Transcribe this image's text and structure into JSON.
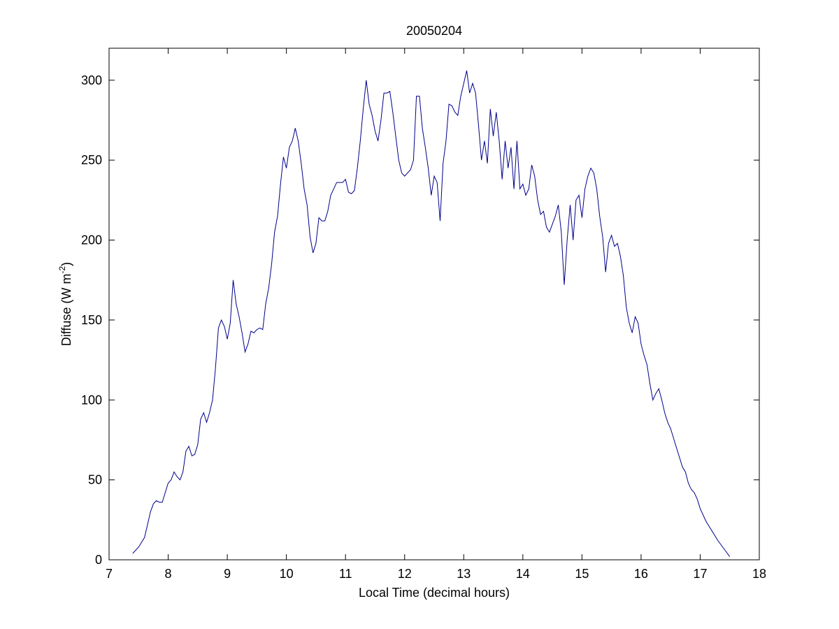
{
  "chart_data": {
    "type": "line",
    "title": "20050204",
    "xlabel": "Local Time (decimal hours)",
    "ylabel_main": "Diffuse (W m",
    "ylabel_sup": "-2",
    "ylabel_close": ")",
    "xlim": [
      7,
      18
    ],
    "ylim": [
      0,
      320
    ],
    "xticks": [
      7,
      8,
      9,
      10,
      11,
      12,
      13,
      14,
      15,
      16,
      17,
      18
    ],
    "xtick_labels": [
      "7",
      "8",
      "9",
      "10",
      "11",
      "12",
      "13",
      "14",
      "15",
      "16",
      "17",
      "18"
    ],
    "yticks": [
      0,
      50,
      100,
      150,
      200,
      250,
      300
    ],
    "ytick_labels": [
      "0",
      "50",
      "100",
      "150",
      "200",
      "250",
      "300"
    ],
    "grid": false,
    "line_color": "#00008b",
    "series": [
      {
        "x": [
          7.4,
          7.5,
          7.6,
          7.65,
          7.7,
          7.75,
          7.8,
          7.85,
          7.9,
          7.95,
          8.0,
          8.05,
          8.1,
          8.15,
          8.2,
          8.25,
          8.3,
          8.35,
          8.4,
          8.45,
          8.5,
          8.55,
          8.6,
          8.65,
          8.7,
          8.75,
          8.8,
          8.85,
          8.9,
          8.95,
          9.0,
          9.05,
          9.1,
          9.15,
          9.2,
          9.25,
          9.3,
          9.35,
          9.4,
          9.45,
          9.5,
          9.55,
          9.6,
          9.65,
          9.7,
          9.75,
          9.8,
          9.85,
          9.9,
          9.95,
          10.0,
          10.05,
          10.1,
          10.15,
          10.2,
          10.25,
          10.3,
          10.35,
          10.4,
          10.45,
          10.5,
          10.55,
          10.6,
          10.65,
          10.7,
          10.75,
          10.8,
          10.85,
          10.9,
          10.95,
          11.0,
          11.05,
          11.1,
          11.15,
          11.2,
          11.25,
          11.3,
          11.35,
          11.4,
          11.45,
          11.5,
          11.55,
          11.6,
          11.65,
          11.7,
          11.75,
          11.8,
          11.85,
          11.9,
          11.95,
          12.0,
          12.05,
          12.1,
          12.15,
          12.2,
          12.25,
          12.3,
          12.35,
          12.4,
          12.45,
          12.5,
          12.55,
          12.6,
          12.65,
          12.7,
          12.75,
          12.8,
          12.85,
          12.9,
          12.95,
          13.0,
          13.05,
          13.1,
          13.15,
          13.2,
          13.25,
          13.3,
          13.35,
          13.4,
          13.45,
          13.5,
          13.55,
          13.6,
          13.65,
          13.7,
          13.75,
          13.8,
          13.85,
          13.9,
          13.95,
          14.0,
          14.05,
          14.1,
          14.15,
          14.2,
          14.25,
          14.3,
          14.35,
          14.4,
          14.45,
          14.5,
          14.55,
          14.6,
          14.65,
          14.7,
          14.75,
          14.8,
          14.85,
          14.9,
          14.95,
          15.0,
          15.05,
          15.1,
          15.15,
          15.2,
          15.25,
          15.3,
          15.35,
          15.4,
          15.45,
          15.5,
          15.55,
          15.6,
          15.65,
          15.7,
          15.75,
          15.8,
          15.85,
          15.9,
          15.95,
          16.0,
          16.05,
          16.1,
          16.15,
          16.2,
          16.25,
          16.3,
          16.35,
          16.4,
          16.45,
          16.5,
          16.55,
          16.6,
          16.65,
          16.7,
          16.75,
          16.8,
          16.85,
          16.9,
          16.95,
          17.0,
          17.1,
          17.2,
          17.3,
          17.4,
          17.5
        ],
        "y": [
          4,
          8,
          14,
          22,
          30,
          35,
          37,
          36,
          36,
          42,
          48,
          50,
          55,
          52,
          50,
          55,
          68,
          71,
          65,
          66,
          72,
          88,
          92,
          86,
          92,
          100,
          120,
          145,
          150,
          146,
          138,
          148,
          175,
          160,
          152,
          142,
          130,
          135,
          143,
          142,
          144,
          145,
          144,
          160,
          170,
          185,
          205,
          215,
          235,
          252,
          245,
          258,
          262,
          270,
          262,
          248,
          232,
          222,
          202,
          192,
          198,
          214,
          212,
          212,
          218,
          228,
          232,
          236,
          236,
          236,
          238,
          230,
          229,
          231,
          245,
          262,
          282,
          300,
          285,
          278,
          268,
          262,
          275,
          292,
          292,
          293,
          280,
          265,
          250,
          242,
          240,
          242,
          244,
          250,
          290,
          290,
          270,
          258,
          245,
          228,
          240,
          236,
          212,
          248,
          262,
          285,
          284,
          280,
          278,
          290,
          298,
          306,
          292,
          298,
          292,
          272,
          250,
          262,
          248,
          282,
          265,
          280,
          262,
          238,
          262,
          245,
          258,
          232,
          262,
          232,
          235,
          228,
          232,
          247,
          240,
          225,
          216,
          218,
          208,
          205,
          210,
          215,
          222,
          205,
          172,
          200,
          222,
          200,
          225,
          228,
          214,
          232,
          240,
          245,
          242,
          232,
          215,
          202,
          180,
          198,
          203,
          196,
          198,
          190,
          178,
          158,
          148,
          142,
          152,
          148,
          135,
          128,
          122,
          110,
          100,
          104,
          107,
          100,
          92,
          86,
          82,
          76,
          70,
          64,
          58,
          55,
          48,
          44,
          42,
          38,
          32,
          24,
          18,
          12,
          7,
          2
        ]
      }
    ]
  }
}
